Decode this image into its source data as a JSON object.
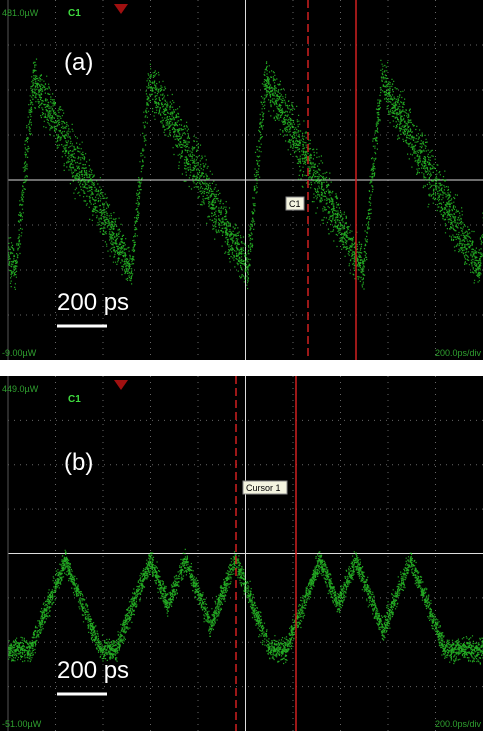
{
  "panels": [
    {
      "top_reading": "481.0µW",
      "channel": "C1",
      "label": "(a)",
      "cursor_label": "C1",
      "scale_bar": "200 ps",
      "bottom_reading": "-9.00µW",
      "timebase": "200.0ps/div"
    },
    {
      "top_reading": "449.0µW",
      "channel": "C1",
      "label": "(b)",
      "cursor_label": "Cursor 1",
      "scale_bar": "200 ps",
      "bottom_reading": "-51.00µW",
      "timebase": "200.0ps/div"
    }
  ]
}
